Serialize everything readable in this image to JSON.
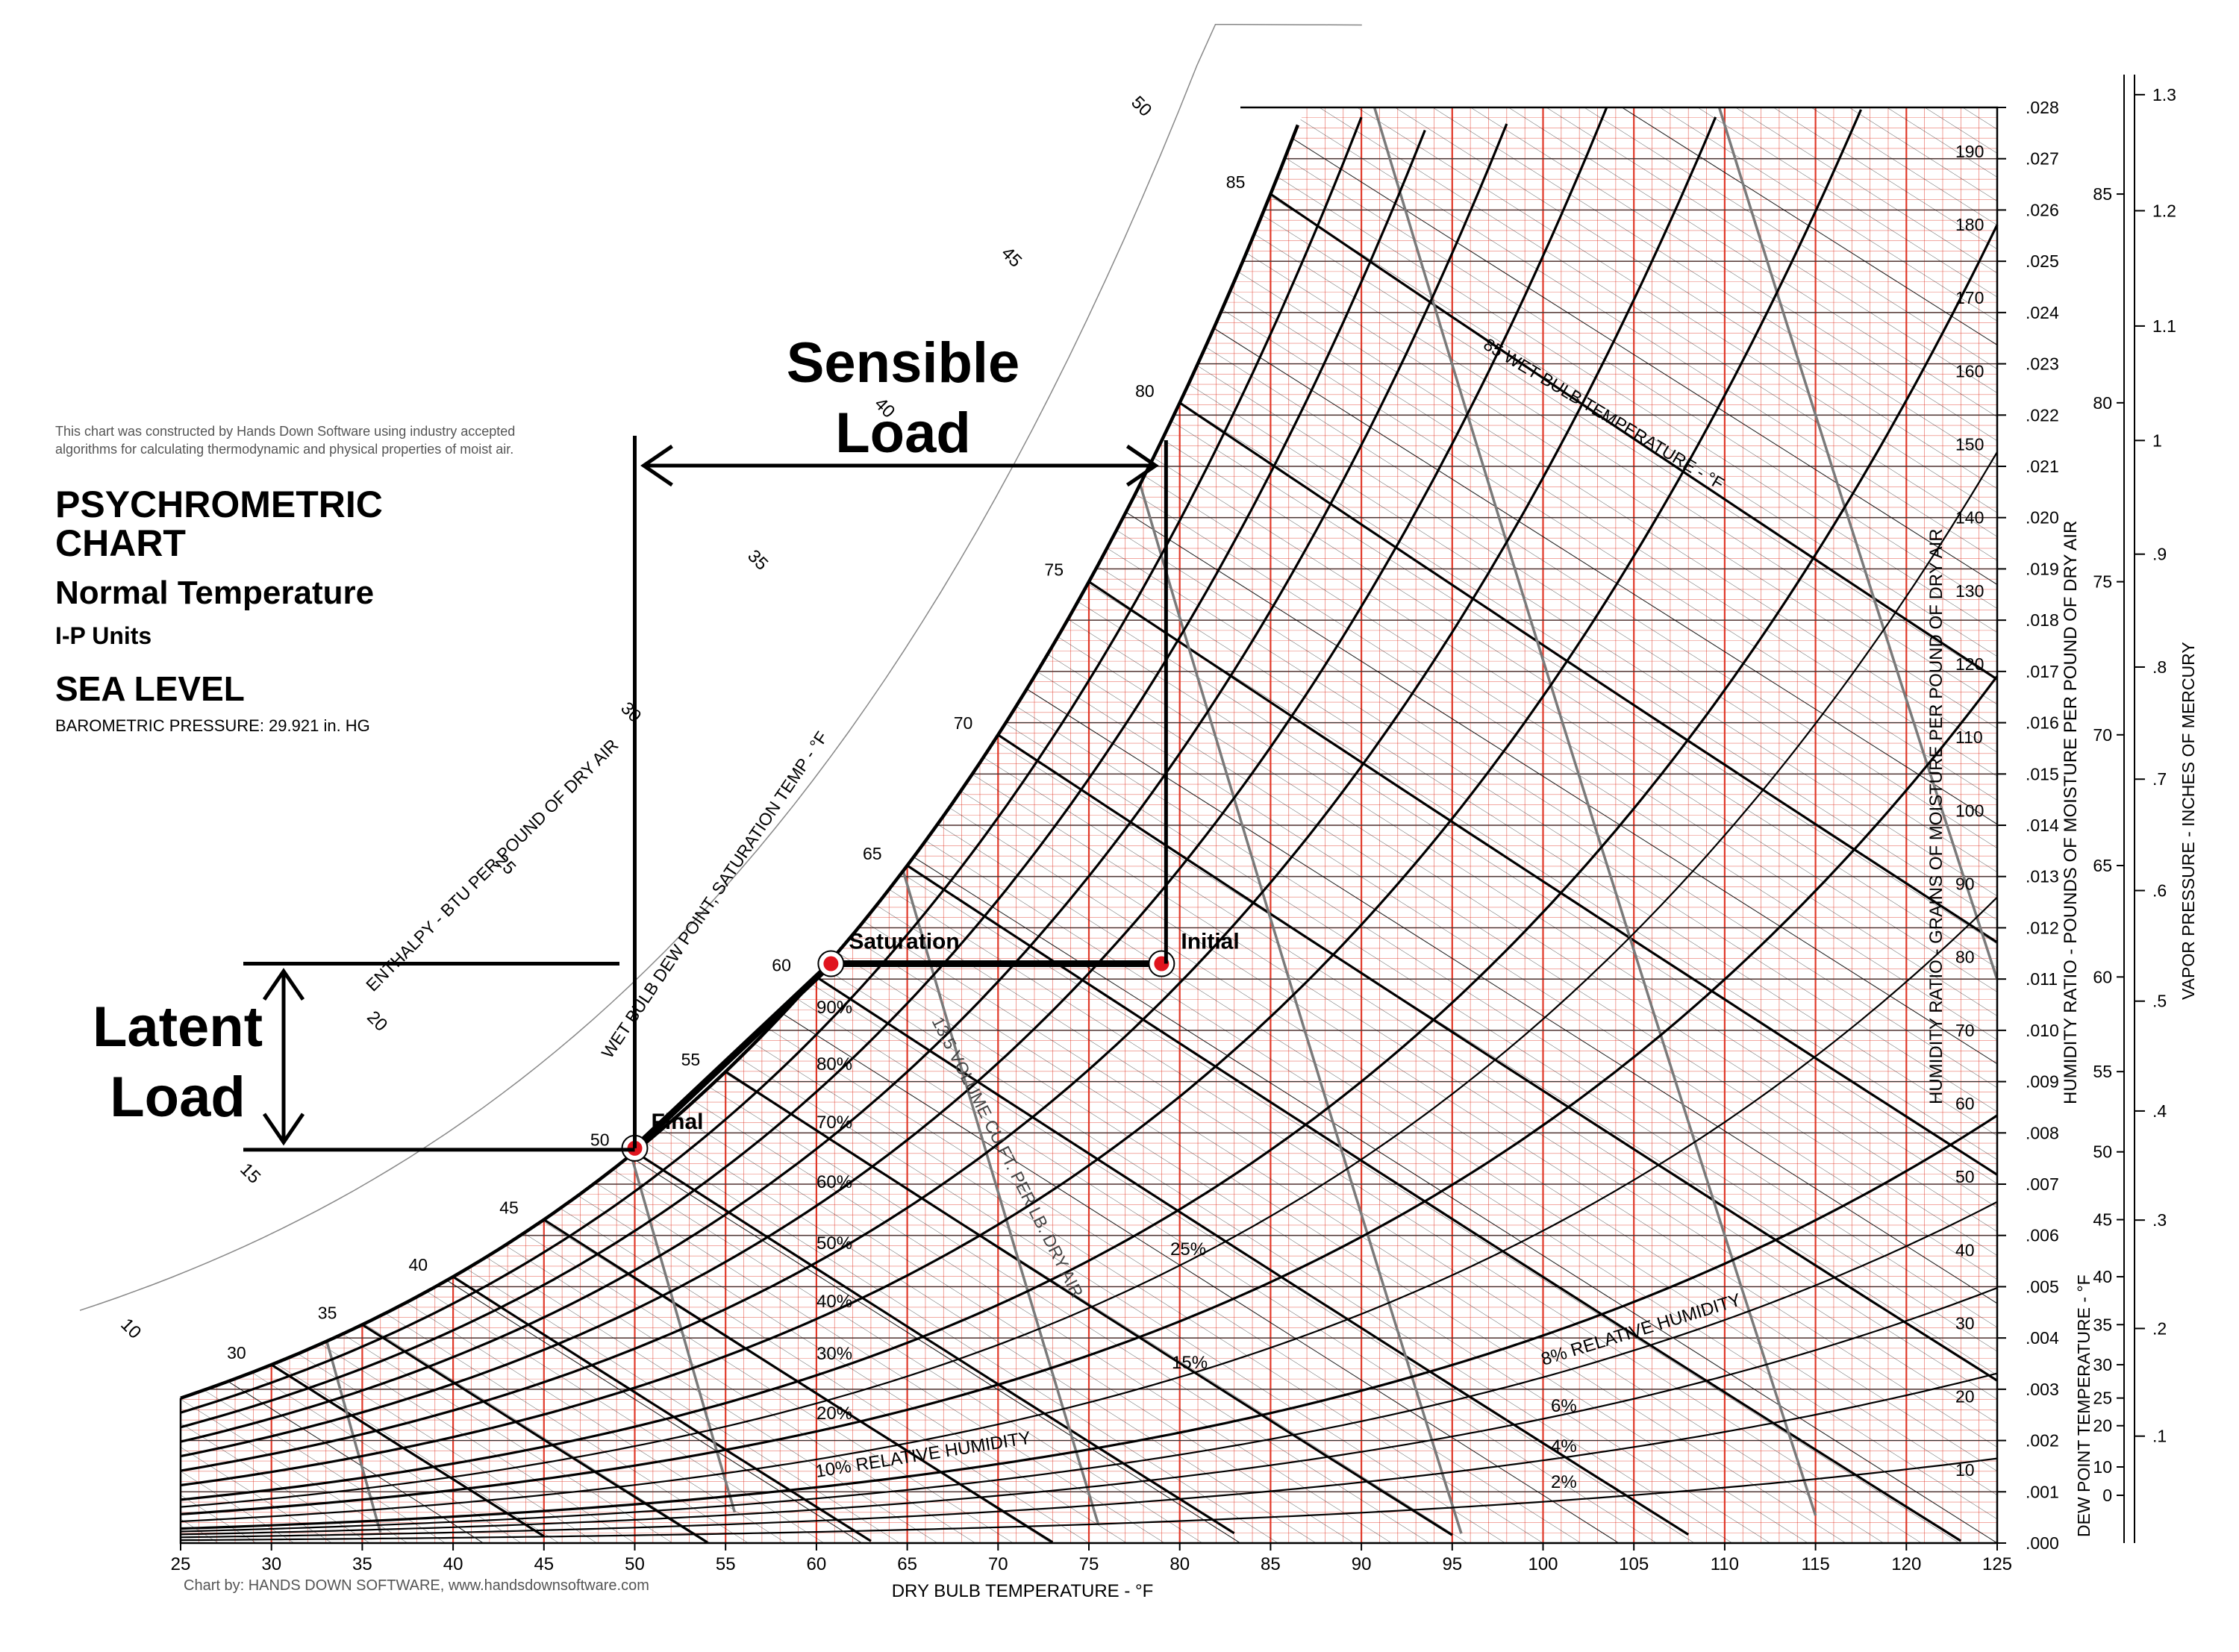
{
  "header": {
    "note": "This chart was constructed by Hands Down Software using industry accepted algorithms for calculating thermodynamic and physical properties of moist air.",
    "title": "PSYCHROMETRIC CHART",
    "subtitle": "Normal Temperature",
    "units": "I-P Units",
    "altitude": "SEA LEVEL",
    "pressure": "BAROMETRIC PRESSURE: 29.921 in. HG"
  },
  "footer": {
    "credit": "Chart by: HANDS DOWN SOFTWARE, www.handsdownsoftware.com"
  },
  "annotations": {
    "sensible": "Sensible Load",
    "latent": "Latent Load"
  },
  "colors": {
    "grid_red": "#e03a2a",
    "saturation": "#000000",
    "volume": "#7a7a7a",
    "point": "#e0141e"
  },
  "chart_data": {
    "type": "psychrometric",
    "xlabel": "DRY BULB TEMPERATURE - °F",
    "x_ticks": [
      25,
      30,
      35,
      40,
      45,
      50,
      55,
      60,
      65,
      70,
      75,
      80,
      85,
      90,
      95,
      100,
      105,
      110,
      115,
      120,
      125
    ],
    "xlim": [
      25,
      125
    ],
    "ylabel_ratio_lb": "HUMIDITY RATIO - POUNDS OF MOISTURE PER POUND OF DRY AIR",
    "ylabel_ratio_gr": "HUMIDITY RATIO - GRAINS OF MOISTURE PER POUND OF DRY AIR",
    "ylim": [
      0.0,
      0.028
    ],
    "w_ticks": [
      ".000",
      ".001",
      ".002",
      ".003",
      ".004",
      ".005",
      ".006",
      ".007",
      ".008",
      ".009",
      ".010",
      ".011",
      ".012",
      ".013",
      ".014",
      ".015",
      ".016",
      ".017",
      ".018",
      ".019",
      ".020",
      ".021",
      ".022",
      ".023",
      ".024",
      ".025",
      ".026",
      ".027",
      ".028"
    ],
    "grains_ticks": [
      10,
      20,
      30,
      40,
      50,
      60,
      70,
      80,
      90,
      100,
      110,
      120,
      130,
      140,
      150,
      160,
      170,
      180,
      190
    ],
    "dew_point_label": "DEW POINT TEMPERATURE - °F",
    "dew_point_ticks": [
      0,
      10,
      20,
      25,
      30,
      35,
      40,
      45,
      50,
      55,
      60,
      65,
      70,
      75,
      80,
      85
    ],
    "vapor_label": "VAPOR PRESSURE - INCHES OF MERCURY",
    "vapor_ticks": [
      ".1",
      ".2",
      ".3",
      ".4",
      ".5",
      ".6",
      ".7",
      ".8",
      ".9",
      "1",
      "1.1",
      "1.2",
      "1.3"
    ],
    "rh_curves": [
      2,
      4,
      6,
      8,
      10,
      15,
      20,
      25,
      30,
      40,
      50,
      60,
      70,
      80,
      90,
      100
    ],
    "rh_labels": [
      "2%",
      "4%",
      "6%",
      "8% RELATIVE HUMIDITY",
      "10% RELATIVE HUMIDITY",
      "15%",
      "20%",
      "25%",
      "30%",
      "40%",
      "50%",
      "60%",
      "70%",
      "80%",
      "90%"
    ],
    "wet_bulb_label": "85 WET BULB TEMPERATURE - °F",
    "wet_bulb_sat_label": "WET BULB DEW POINT, SATURATION TEMP - °F",
    "wet_bulb_lines": [
      30,
      35,
      40,
      45,
      50,
      55,
      60,
      65,
      70,
      75,
      80,
      85
    ],
    "enthalpy_label": "ENTHALPY - BTU PER POUND OF DRY AIR",
    "enthalpy_ticks": [
      10,
      15,
      20,
      25,
      30,
      35,
      40,
      45,
      50
    ],
    "volume_label": "13.5 VOLUME CU.FT. PER LB. DRY AIR",
    "volume_lines": [
      "12.5",
      "13.0",
      "13.5",
      "14.0",
      "14.5",
      "15.0"
    ],
    "process": [
      {
        "name": "Initial",
        "db": 79,
        "w": 0.0113
      },
      {
        "name": "Saturation",
        "db": 60.8,
        "w": 0.0113
      },
      {
        "name": "Final",
        "db": 50,
        "w": 0.0077
      }
    ]
  }
}
